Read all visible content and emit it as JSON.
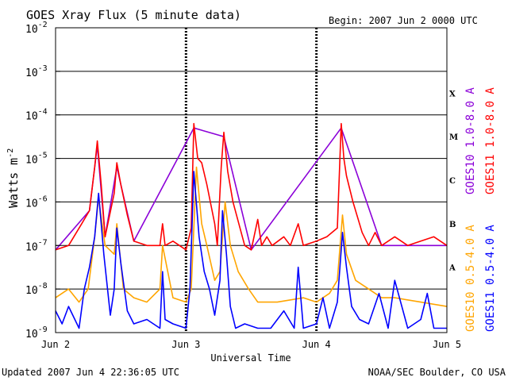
{
  "chart_data": {
    "type": "line",
    "title": "GOES Xray Flux (5 minute data)",
    "begin_label": "Begin:  2007 Jun 2 0000 UTC",
    "ylabel_main": "Watts m",
    "ylabel_exp": "-2",
    "xlabel": "Universal Time",
    "xticks": [
      {
        "label": "Jun 2",
        "day": 0
      },
      {
        "label": "Jun 3",
        "day": 1
      },
      {
        "label": "Jun 4",
        "day": 2
      },
      {
        "label": "Jun 5",
        "day": 3
      }
    ],
    "ylim_exp": [
      -9,
      -2
    ],
    "yticks": [
      {
        "base": "10",
        "exp": "-2",
        "v": -2
      },
      {
        "base": "10",
        "exp": "-3",
        "v": -3
      },
      {
        "base": "10",
        "exp": "-4",
        "v": -4
      },
      {
        "base": "10",
        "exp": "-5",
        "v": -5
      },
      {
        "base": "10",
        "exp": "-6",
        "v": -6
      },
      {
        "base": "10",
        "exp": "-7",
        "v": -7
      },
      {
        "base": "10",
        "exp": "-8",
        "v": -8
      },
      {
        "base": "10",
        "exp": "-9",
        "v": -9
      }
    ],
    "flare_classes": [
      {
        "label": "X",
        "v": -3.5
      },
      {
        "label": "M",
        "v": -4.5
      },
      {
        "label": "C",
        "v": -5.5
      },
      {
        "label": "B",
        "v": -6.5
      },
      {
        "label": "A",
        "v": -7.5
      }
    ],
    "series": [
      {
        "name": "GOES11 1.0-8.0 A",
        "color": "#ff0000",
        "x": [
          0,
          0.1,
          0.2,
          0.26,
          0.3,
          0.32,
          0.35,
          0.38,
          0.45,
          0.47,
          0.5,
          0.55,
          0.6,
          0.7,
          0.8,
          0.82,
          0.84,
          0.9,
          1.0,
          1.04,
          1.06,
          1.09,
          1.12,
          1.16,
          1.22,
          1.24,
          1.27,
          1.29,
          1.32,
          1.36,
          1.45,
          1.5,
          1.55,
          1.58,
          1.62,
          1.66,
          1.75,
          1.8,
          1.86,
          1.9,
          2.0,
          2.08,
          2.16,
          2.19,
          2.21,
          2.23,
          2.28,
          2.35,
          2.4,
          2.45,
          2.5,
          2.6,
          2.7,
          2.8,
          2.9,
          3.0
        ],
        "values": [
          -7.1,
          -7.0,
          -6.5,
          -6.2,
          -5.2,
          -4.6,
          -5.6,
          -6.8,
          -5.8,
          -5.1,
          -5.6,
          -6.3,
          -6.9,
          -7.0,
          -7.0,
          -6.5,
          -7.0,
          -6.9,
          -7.1,
          -6.6,
          -4.2,
          -5.0,
          -5.1,
          -5.6,
          -6.5,
          -7.0,
          -5.2,
          -4.4,
          -5.3,
          -6.0,
          -7.0,
          -7.1,
          -6.4,
          -7.0,
          -6.8,
          -7.0,
          -6.8,
          -7.0,
          -6.5,
          -7.0,
          -6.9,
          -6.8,
          -6.6,
          -4.2,
          -5.0,
          -5.4,
          -6.0,
          -6.7,
          -7.0,
          -6.7,
          -7.0,
          -6.8,
          -7.0,
          -6.9,
          -6.8,
          -7.0
        ]
      },
      {
        "name": "GOES10 1.0-8.0 A",
        "color": "#8b00d8",
        "x": [
          0,
          0.26,
          0.32,
          0.38,
          0.47,
          0.6,
          1.06,
          1.29,
          1.5,
          2.19,
          2.5,
          3.0
        ],
        "values": [
          -7.1,
          -6.2,
          -4.7,
          -6.8,
          -5.2,
          -6.9,
          -4.3,
          -4.5,
          -7.1,
          -4.3,
          -7.0,
          -7.0
        ]
      },
      {
        "name": "GOES10 0.5-4.0 A",
        "color": "#ffa500",
        "x": [
          0,
          0.1,
          0.18,
          0.25,
          0.3,
          0.33,
          0.38,
          0.45,
          0.47,
          0.52,
          0.6,
          0.7,
          0.8,
          0.82,
          0.9,
          1.0,
          1.04,
          1.08,
          1.12,
          1.16,
          1.22,
          1.26,
          1.3,
          1.34,
          1.4,
          1.48,
          1.55,
          1.7,
          1.9,
          2.0,
          2.1,
          2.16,
          2.2,
          2.23,
          2.3,
          2.4,
          2.5,
          2.6,
          2.8,
          3.0
        ],
        "values": [
          -8.2,
          -8.0,
          -8.3,
          -8.0,
          -6.8,
          -5.9,
          -7.0,
          -7.2,
          -6.5,
          -8.0,
          -8.2,
          -8.3,
          -8.0,
          -7.0,
          -8.2,
          -8.3,
          -8.0,
          -5.2,
          -6.5,
          -7.0,
          -7.8,
          -7.6,
          -6.0,
          -7.0,
          -7.6,
          -8.0,
          -8.3,
          -8.3,
          -8.2,
          -8.3,
          -8.1,
          -7.8,
          -6.3,
          -7.2,
          -7.8,
          -8.0,
          -8.2,
          -8.2,
          -8.3,
          -8.4
        ]
      },
      {
        "name": "GOES11 0.5-4.0 A",
        "color": "#0000ff",
        "x": [
          0,
          0.05,
          0.1,
          0.18,
          0.22,
          0.26,
          0.3,
          0.33,
          0.37,
          0.42,
          0.45,
          0.47,
          0.5,
          0.55,
          0.6,
          0.7,
          0.8,
          0.82,
          0.84,
          0.9,
          1.0,
          1.03,
          1.06,
          1.1,
          1.14,
          1.18,
          1.22,
          1.26,
          1.28,
          1.31,
          1.34,
          1.38,
          1.45,
          1.55,
          1.65,
          1.75,
          1.83,
          1.86,
          1.9,
          2.0,
          2.05,
          2.1,
          2.16,
          2.2,
          2.23,
          2.27,
          2.33,
          2.4,
          2.48,
          2.55,
          2.6,
          2.7,
          2.8,
          2.85,
          2.9,
          3.0
        ],
        "values": [
          -8.5,
          -8.8,
          -8.4,
          -8.9,
          -8.0,
          -7.5,
          -6.8,
          -5.8,
          -7.2,
          -8.6,
          -8.0,
          -6.6,
          -7.4,
          -8.5,
          -8.8,
          -8.7,
          -8.9,
          -7.6,
          -8.7,
          -8.8,
          -8.9,
          -8.0,
          -5.3,
          -6.8,
          -7.6,
          -8.0,
          -8.6,
          -7.8,
          -6.2,
          -7.2,
          -8.4,
          -8.9,
          -8.8,
          -8.9,
          -8.9,
          -8.5,
          -8.9,
          -7.5,
          -8.9,
          -8.8,
          -8.2,
          -8.9,
          -8.3,
          -6.7,
          -7.5,
          -8.4,
          -8.7,
          -8.8,
          -8.1,
          -8.9,
          -7.8,
          -8.9,
          -8.7,
          -8.1,
          -8.9,
          -8.9
        ]
      }
    ],
    "legend_right": [
      {
        "text": "GOES10 1.0-8.0 A",
        "color": "#8b00d8"
      },
      {
        "text": "GOES11 1.0-8.0 A",
        "color": "#ff0000"
      },
      {
        "text": "GOES10 0.5-4.0 A",
        "color": "#ffa500"
      },
      {
        "text": "GOES11 0.5-4.0 A",
        "color": "#0000ff"
      }
    ],
    "footer_left": "Updated 2007 Jun  4 22:36:05 UTC",
    "footer_right": "NOAA/SEC Boulder, CO USA"
  }
}
